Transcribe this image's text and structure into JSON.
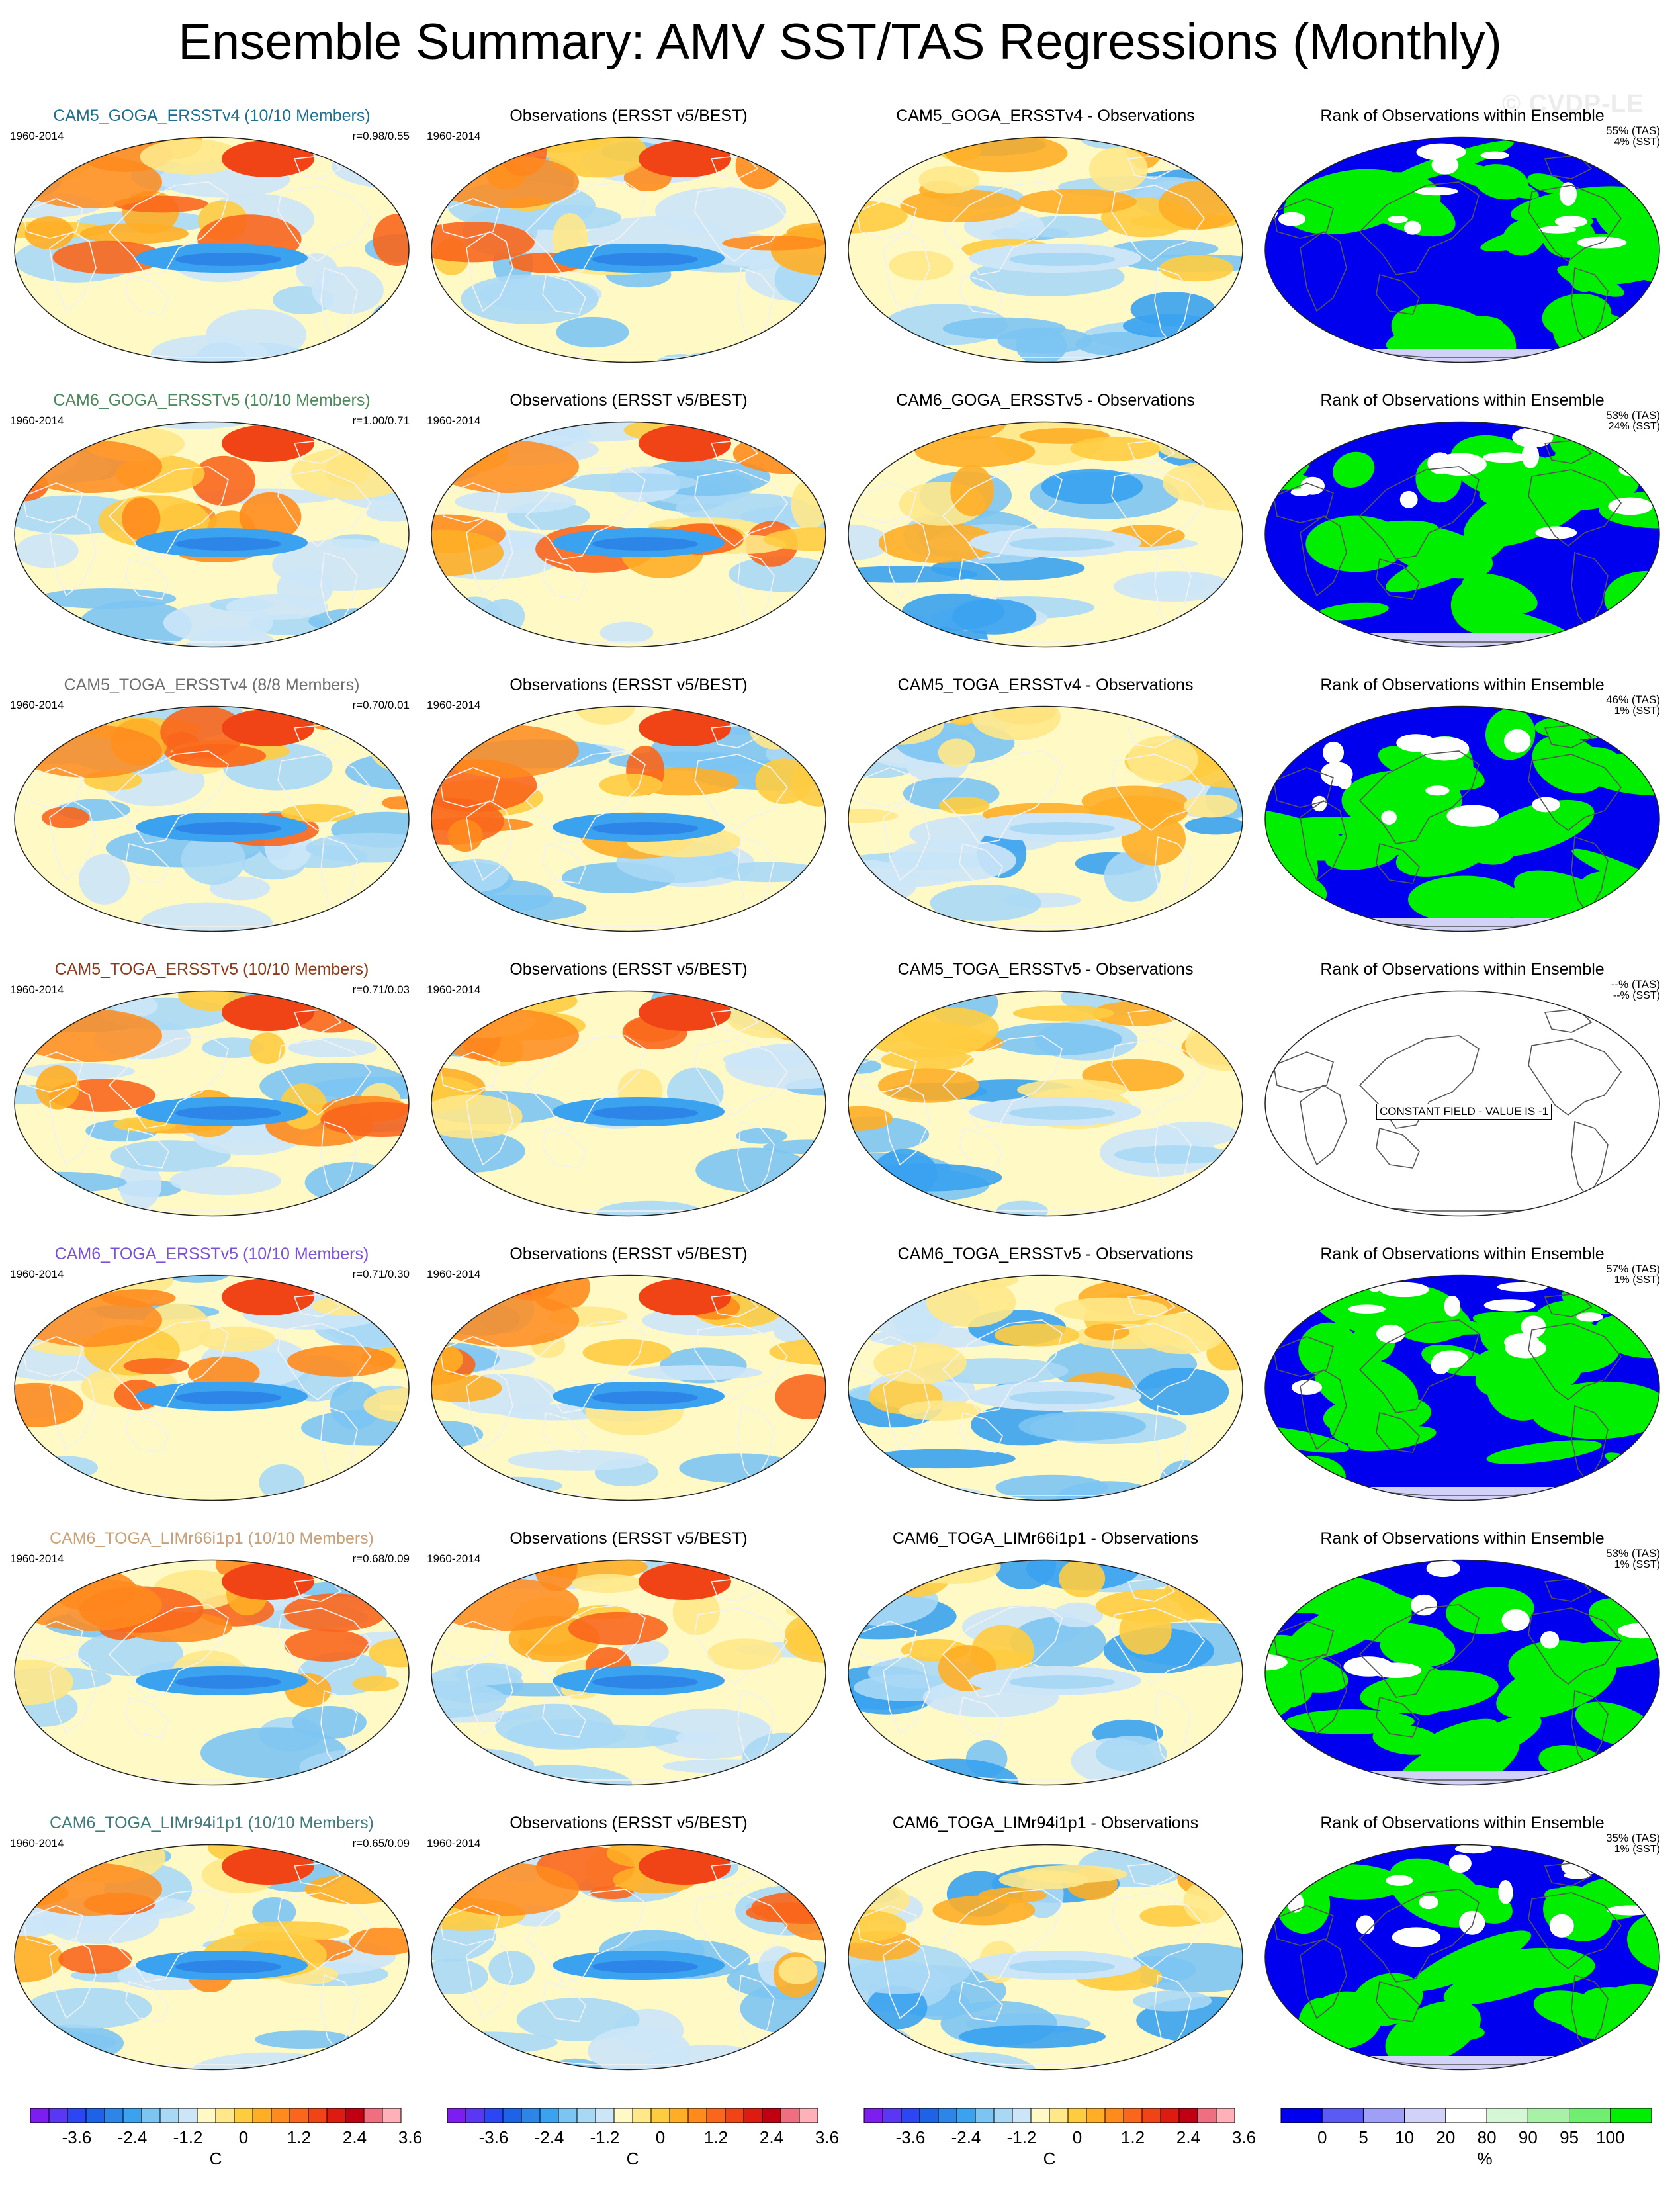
{
  "title": "Ensemble Summary: AMV SST/TAS Regressions (Monthly)",
  "watermark": "© CVDP-LE",
  "period": "1960-2014",
  "obs_title": "Observations (ERSST v5/BEST)",
  "rank_title": "Rank of Observations within Ensemble",
  "colors": {
    "div_levels": [
      "#7d1df0",
      "#5a37f5",
      "#2b46f2",
      "#1e62e8",
      "#2d85e8",
      "#3aa2ef",
      "#7cc4f2",
      "#a9d8f5",
      "#cce6f8",
      "#fff9c6",
      "#ffe88a",
      "#ffcc40",
      "#ffae26",
      "#ff8b1d",
      "#f9661c",
      "#f04316",
      "#dd1b10",
      "#c00012",
      "#ef6f80",
      "#ffb0b8"
    ],
    "rank_levels": [
      "#0000ee",
      "#5a5af5",
      "#9f9ff7",
      "#d2d2f9",
      "#ffffff",
      "#d6f7d6",
      "#a8f2a8",
      "#6fee6f",
      "#00ee00"
    ],
    "title_cam5_goga_v4": "#1f6f8f",
    "title_cam6_goga_v5": "#4e8a5e",
    "title_cam5_toga_v4": "#6f6f6f",
    "title_cam5_toga_v5": "#8b3a1c",
    "title_cam6_toga_v5": "#7b52d6",
    "title_cam6_toga_limr66": "#c9a077",
    "title_cam6_toga_limr94": "#3f7d7d"
  },
  "rows": [
    {
      "name": "CAM5_GOGA_ERSSTv4 (10/10 Members)",
      "color_key": "title_cam5_goga_v4",
      "corr": "r=0.98/0.55",
      "diff_title": "CAM5_GOGA_ERSSTv4 - Observations",
      "tas": "55% (TAS)",
      "sst": "4% (SST)",
      "model_icon": "model-regression-map",
      "diff_icon": "difference-map",
      "rank_icon": "rank-map"
    },
    {
      "name": "CAM6_GOGA_ERSSTv5 (10/10 Members)",
      "color_key": "title_cam6_goga_v5",
      "corr": "r=1.00/0.71",
      "diff_title": "CAM6_GOGA_ERSSTv5 - Observations",
      "tas": "53% (TAS)",
      "sst": "24% (SST)",
      "model_icon": "model-regression-map",
      "diff_icon": "difference-map",
      "rank_icon": "rank-map"
    },
    {
      "name": "CAM5_TOGA_ERSSTv4 (8/8 Members)",
      "color_key": "title_cam5_toga_v4",
      "corr": "r=0.70/0.01",
      "diff_title": "CAM5_TOGA_ERSSTv4 - Observations",
      "tas": "46% (TAS)",
      "sst": "1% (SST)",
      "model_icon": "model-regression-map",
      "diff_icon": "difference-map",
      "rank_icon": "rank-map"
    },
    {
      "name": "CAM5_TOGA_ERSSTv5 (10/10 Members)",
      "color_key": "title_cam5_toga_v5",
      "corr": "r=0.71/0.03",
      "diff_title": "CAM5_TOGA_ERSSTv5 - Observations",
      "tas": "--% (TAS)",
      "sst": "--% (SST)",
      "constant": "CONSTANT FIELD - VALUE IS -1",
      "model_icon": "model-regression-map",
      "diff_icon": "difference-map",
      "rank_icon": "rank-map"
    },
    {
      "name": "CAM6_TOGA_ERSSTv5 (10/10 Members)",
      "color_key": "title_cam6_toga_v5",
      "corr": "r=0.71/0.30",
      "diff_title": "CAM6_TOGA_ERSSTv5 - Observations",
      "tas": "57% (TAS)",
      "sst": "1% (SST)",
      "model_icon": "model-regression-map",
      "diff_icon": "difference-map",
      "rank_icon": "rank-map"
    },
    {
      "name": "CAM6_TOGA_LIMr66i1p1 (10/10 Members)",
      "color_key": "title_cam6_toga_limr66",
      "corr": "r=0.68/0.09",
      "diff_title": "CAM6_TOGA_LIMr66i1p1 - Observations",
      "tas": "53% (TAS)",
      "sst": "1% (SST)",
      "model_icon": "model-regression-map",
      "diff_icon": "difference-map",
      "rank_icon": "rank-map"
    },
    {
      "name": "CAM6_TOGA_LIMr94i1p1 (10/10 Members)",
      "color_key": "title_cam6_toga_limr94",
      "corr": "r=0.65/0.09",
      "diff_title": "CAM6_TOGA_LIMr94i1p1 - Observations",
      "tas": "35% (TAS)",
      "sst": "1% (SST)",
      "model_icon": "model-regression-map",
      "diff_icon": "difference-map",
      "rank_icon": "rank-map"
    }
  ],
  "colorbars": [
    {
      "ticks": [
        "-3.6",
        "-2.4",
        "-1.2",
        "0",
        "1.2",
        "2.4",
        "3.6"
      ],
      "unit": "C"
    },
    {
      "ticks": [
        "-3.6",
        "-2.4",
        "-1.2",
        "0",
        "1.2",
        "2.4",
        "3.6"
      ],
      "unit": "C"
    },
    {
      "ticks": [
        "-3.6",
        "-2.4",
        "-1.2",
        "0",
        "1.2",
        "2.4",
        "3.6"
      ],
      "unit": "C"
    },
    {
      "ticks": [
        "0",
        "5",
        "10",
        "20",
        "80",
        "90",
        "95",
        "100"
      ],
      "unit": "%"
    }
  ]
}
